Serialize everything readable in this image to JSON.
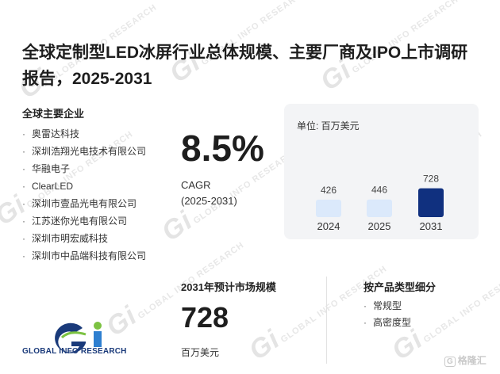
{
  "report": {
    "title": "全球定制型LED冰屏行业总体规模、主要厂商及IPO上市调研报告，2025-2031"
  },
  "companies": {
    "heading": "全球主要企业",
    "items": [
      "奥雷达科技",
      "深圳浩翔光电技术有限公司",
      "华融电子",
      "ClearLED",
      "深圳市壹品光电有限公司",
      "江苏迷你光电有限公司",
      "深圳市明宏威科技",
      "深圳市中品端科技有限公司"
    ]
  },
  "cagr": {
    "value": "8.5%",
    "label": "CAGR",
    "range": "(2025-2031)"
  },
  "chart_data": {
    "type": "bar",
    "unit": "单位: 百万美元",
    "categories": [
      "2024",
      "2025",
      "2031"
    ],
    "values": [
      426,
      446,
      728
    ],
    "colors": [
      "#dbe9fb",
      "#dbe9fb",
      "#10307f"
    ]
  },
  "market": {
    "heading": "2031年预计市场规模",
    "value": "728",
    "unit": "百万美元"
  },
  "segments": {
    "heading": "按产品类型细分",
    "items": [
      "常规型",
      "高密度型"
    ]
  },
  "brand": {
    "logo_text": "GLOBAL INFO RESEARCH",
    "watermark_text": "GLOBAL INFO RESEARCH",
    "badge_text": "格隆汇",
    "badge_icon": "G",
    "logo_colors": {
      "navy": "#1a3a7a",
      "green": "#7cc242",
      "blue": "#2e7fd0"
    }
  }
}
